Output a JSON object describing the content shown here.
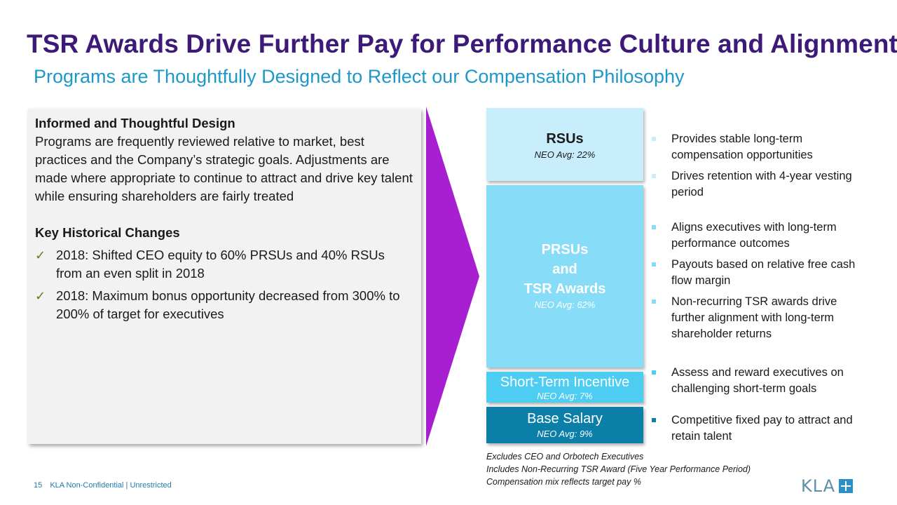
{
  "slide": {
    "title": "TSR Awards Drive Further Pay for Performance Culture and Alignment",
    "subtitle": "Programs are Thoughtfully Designed to Reflect our Compensation Philosophy"
  },
  "left_panel": {
    "heading1": "Informed and Thoughtful Design",
    "body": "Programs are frequently reviewed relative to market, best practices and the Company’s strategic goals. Adjustments are made where appropriate to continue to attract and drive key talent while ensuring shareholders are fairly treated",
    "heading2": "Key Historical Changes",
    "changes": [
      "2018: Shifted CEO equity to 60% PRSUs and 40% RSUs from an even split in 2018",
      "2018: Maximum bonus opportunity decreased from 300% to 200% of target for executives"
    ]
  },
  "blocks": {
    "rsu": {
      "name": "RSUs",
      "avg": "NEO Avg: 22%",
      "color": "#c8eefc"
    },
    "prsu": {
      "line1": "PRSUs",
      "line2": "and",
      "line3": "TSR Awards",
      "avg": "NEO Avg: 62%",
      "color": "#87dcf8"
    },
    "sti": {
      "name": "Short-Term Incentive",
      "avg": "NEO Avg: 7%",
      "color": "#4ccdf1"
    },
    "base": {
      "name": "Base Salary",
      "avg": "NEO Avg: 9%",
      "color": "#0b7fa8"
    }
  },
  "bullets": {
    "rsu": [
      "Provides stable long-term compensation opportunities",
      "Drives retention with 4-year vesting period"
    ],
    "prsu": [
      "Aligns executives with long-term performance outcomes",
      "Payouts based on relative free cash flow margin",
      "Non-recurring TSR awards drive further alignment with long-term shareholder returns"
    ],
    "sti": [
      "Assess and reward executives on challenging short-term goals"
    ],
    "base": [
      "Competitive fixed pay to attract and retain talent"
    ]
  },
  "notes": [
    "Excludes CEO and Orbotech Executives",
    "Includes Non-Recurring TSR Award (Five Year Performance Period)",
    "Compensation mix reflects target pay %"
  ],
  "footer": {
    "page_number": "15",
    "classification": "KLA Non-Confidential | Unrestricted"
  },
  "logo": {
    "text": "KLA",
    "icon": "plus-icon"
  },
  "colors": {
    "title": "#3d1a7a",
    "subtitle": "#1e97c9",
    "arrow": "#a81fd1"
  }
}
